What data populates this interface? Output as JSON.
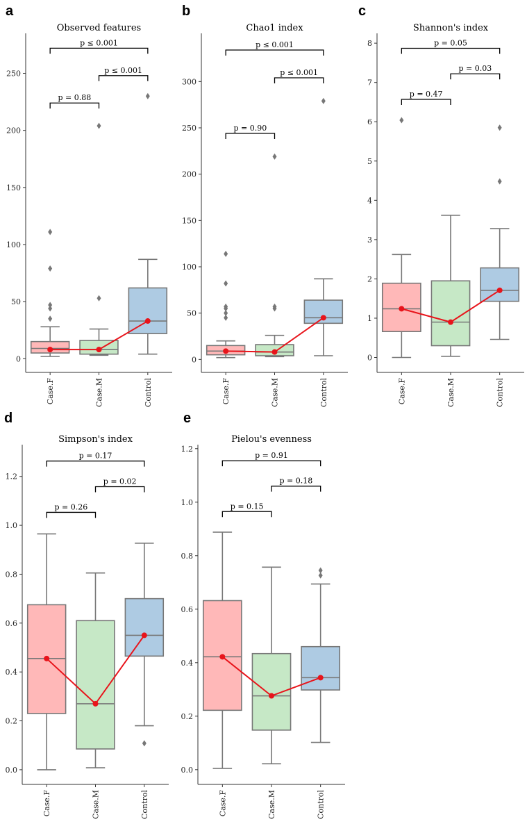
{
  "chart_data": [
    {
      "panel": "a",
      "type": "box",
      "title": "Observed features",
      "categories": [
        "Case.F",
        "Case.M",
        "Control"
      ],
      "colors": [
        "#ffb8b8",
        "#c6e8c6",
        "#aecbe3"
      ],
      "ylim": [
        -12,
        285
      ],
      "yticks": [
        0,
        50,
        100,
        150,
        200,
        250
      ],
      "tick_labels": [
        "0",
        "50",
        "100",
        "150",
        "200",
        "250"
      ],
      "boxes": [
        {
          "whisker_low": 2,
          "q1": 5,
          "median": 9,
          "q3": 15,
          "whisker_high": 28,
          "outliers": [
            35,
            44,
            47,
            79,
            111
          ]
        },
        {
          "whisker_low": 3,
          "q1": 4,
          "median": 8,
          "q3": 16,
          "whisker_high": 26,
          "outliers": [
            53,
            204
          ]
        },
        {
          "whisker_low": 4,
          "q1": 22,
          "median": 33,
          "q3": 62,
          "whisker_high": 87,
          "outliers": [
            230
          ]
        }
      ],
      "means": [
        8,
        8,
        33
      ],
      "comparisons": [
        {
          "from": 0,
          "to": 1,
          "y": 224,
          "label": "p = 0.88"
        },
        {
          "from": 1,
          "to": 2,
          "y": 248,
          "label": "p ≤ 0.001"
        },
        {
          "from": 0,
          "to": 2,
          "y": 272,
          "label": "p ≤ 0.001"
        }
      ]
    },
    {
      "panel": "b",
      "type": "box",
      "title": "Chao1 index",
      "categories": [
        "Case.F",
        "Case.M",
        "Control"
      ],
      "colors": [
        "#ffb8b8",
        "#c6e8c6",
        "#aecbe3"
      ],
      "ylim": [
        -14,
        352
      ],
      "yticks": [
        0,
        50,
        100,
        150,
        200,
        250,
        300
      ],
      "tick_labels": [
        "0",
        "50",
        "100",
        "150",
        "200",
        "250",
        "300"
      ],
      "boxes": [
        {
          "whisker_low": 2,
          "q1": 5,
          "median": 9,
          "q3": 15,
          "whisker_high": 20,
          "outliers": [
            45,
            50,
            55,
            57,
            82,
            114
          ]
        },
        {
          "whisker_low": 3,
          "q1": 4,
          "median": 8,
          "q3": 16,
          "whisker_high": 26,
          "outliers": [
            55,
            57,
            219
          ]
        },
        {
          "whisker_low": 4,
          "q1": 39,
          "median": 45,
          "q3": 64,
          "whisker_high": 87,
          "outliers": [
            279
          ]
        }
      ],
      "means": [
        9,
        8,
        45
      ],
      "comparisons": [
        {
          "from": 0,
          "to": 1,
          "y": 244,
          "label": "p = 0.90"
        },
        {
          "from": 1,
          "to": 2,
          "y": 304,
          "label": "p ≤ 0.001"
        },
        {
          "from": 0,
          "to": 2,
          "y": 334,
          "label": "p ≤ 0.001"
        }
      ]
    },
    {
      "panel": "c",
      "type": "box",
      "title": "Shannon's index",
      "categories": [
        "Case.F",
        "Case.M",
        "Control"
      ],
      "colors": [
        "#ffb8b8",
        "#c6e8c6",
        "#aecbe3"
      ],
      "ylim": [
        -0.38,
        8.25
      ],
      "yticks": [
        0,
        1,
        2,
        3,
        4,
        5,
        6,
        7,
        8
      ],
      "tick_labels": [
        "0",
        "1",
        "2",
        "3",
        "4",
        "5",
        "6",
        "7",
        "8"
      ],
      "boxes": [
        {
          "whisker_low": 0,
          "q1": 0.66,
          "median": 1.24,
          "q3": 1.89,
          "whisker_high": 2.62,
          "outliers": [
            6.04
          ]
        },
        {
          "whisker_low": 0.03,
          "q1": 0.3,
          "median": 0.9,
          "q3": 1.95,
          "whisker_high": 3.62,
          "outliers": []
        },
        {
          "whisker_low": 0.46,
          "q1": 1.43,
          "median": 1.71,
          "q3": 2.28,
          "whisker_high": 3.28,
          "outliers": [
            4.48,
            5.85
          ]
        }
      ],
      "means": [
        1.24,
        0.9,
        1.71
      ],
      "comparisons": [
        {
          "from": 0,
          "to": 1,
          "y": 6.57,
          "label": "p = 0.47"
        },
        {
          "from": 1,
          "to": 2,
          "y": 7.22,
          "label": "p = 0.03"
        },
        {
          "from": 0,
          "to": 2,
          "y": 7.87,
          "label": "p = 0.05"
        }
      ]
    },
    {
      "panel": "d",
      "type": "box",
      "title": "Simpson's index",
      "categories": [
        "Case.F",
        "Case.M",
        "Control"
      ],
      "colors": [
        "#ffb8b8",
        "#c6e8c6",
        "#aecbe3"
      ],
      "ylim": [
        -0.06,
        1.33
      ],
      "yticks": [
        0.0,
        0.2,
        0.4,
        0.6,
        0.8,
        1.0,
        1.2
      ],
      "tick_labels": [
        "0.0",
        "0.2",
        "0.4",
        "0.6",
        "0.8",
        "1.0",
        "1.2"
      ],
      "boxes": [
        {
          "whisker_low": 0.0,
          "q1": 0.23,
          "median": 0.455,
          "q3": 0.675,
          "whisker_high": 0.965,
          "outliers": []
        },
        {
          "whisker_low": 0.008,
          "q1": 0.085,
          "median": 0.27,
          "q3": 0.61,
          "whisker_high": 0.805,
          "outliers": []
        },
        {
          "whisker_low": 0.18,
          "q1": 0.465,
          "median": 0.55,
          "q3": 0.7,
          "whisker_high": 0.927,
          "outliers": [
            0.108
          ]
        }
      ],
      "means": [
        0.455,
        0.27,
        0.55
      ],
      "comparisons": [
        {
          "from": 0,
          "to": 1,
          "y": 1.053,
          "label": "p = 0.26"
        },
        {
          "from": 1,
          "to": 2,
          "y": 1.158,
          "label": "p = 0.02"
        },
        {
          "from": 0,
          "to": 2,
          "y": 1.263,
          "label": "p = 0.17"
        }
      ]
    },
    {
      "panel": "e",
      "type": "box",
      "title": "Pielou's evenness",
      "categories": [
        "Case.F",
        "Case.M",
        "Control"
      ],
      "colors": [
        "#ffb8b8",
        "#c6e8c6",
        "#aecbe3"
      ],
      "ylim": [
        -0.055,
        1.215
      ],
      "yticks": [
        0.0,
        0.2,
        0.4,
        0.6,
        0.8,
        1.0,
        1.2
      ],
      "tick_labels": [
        "0.0",
        "0.2",
        "0.4",
        "0.6",
        "0.8",
        "1.0",
        "1.2"
      ],
      "boxes": [
        {
          "whisker_low": 0.005,
          "q1": 0.222,
          "median": 0.422,
          "q3": 0.632,
          "whisker_high": 0.888,
          "outliers": []
        },
        {
          "whisker_low": 0.022,
          "q1": 0.148,
          "median": 0.276,
          "q3": 0.434,
          "whisker_high": 0.757,
          "outliers": []
        },
        {
          "whisker_low": 0.102,
          "q1": 0.298,
          "median": 0.344,
          "q3": 0.46,
          "whisker_high": 0.694,
          "outliers": [
            0.726,
            0.745
          ]
        }
      ],
      "means": [
        0.422,
        0.276,
        0.344
      ],
      "comparisons": [
        {
          "from": 0,
          "to": 1,
          "y": 0.965,
          "label": "p = 0.15"
        },
        {
          "from": 1,
          "to": 2,
          "y": 1.06,
          "label": "p = 0.18"
        },
        {
          "from": 0,
          "to": 2,
          "y": 1.155,
          "label": "p = 0.91"
        }
      ]
    }
  ]
}
